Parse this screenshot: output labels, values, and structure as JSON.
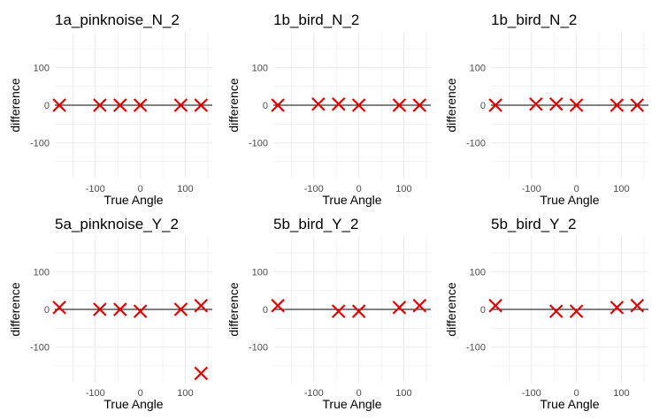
{
  "chart_data": [
    {
      "type": "scatter",
      "title": "1a_pinknoise_N_2",
      "xlabel": "True Angle",
      "ylabel": "difference",
      "x_ticks": [
        -100,
        0,
        100
      ],
      "y_ticks": [
        100,
        0,
        -100
      ],
      "xlim": [
        -190,
        160
      ],
      "ylim": [
        -195,
        195
      ],
      "reference_line": 0,
      "grid": true,
      "points": [
        {
          "x": -180,
          "y": 0
        },
        {
          "x": -90,
          "y": 0
        },
        {
          "x": -45,
          "y": 0
        },
        {
          "x": 0,
          "y": 0
        },
        {
          "x": 90,
          "y": 0
        },
        {
          "x": 135,
          "y": 0
        }
      ],
      "marker_color": "#e00000"
    },
    {
      "type": "scatter",
      "title": "1b_bird_N_2",
      "xlabel": "True Angle",
      "ylabel": "difference",
      "x_ticks": [
        -100,
        0,
        100
      ],
      "y_ticks": [
        100,
        0,
        -100
      ],
      "xlim": [
        -190,
        160
      ],
      "ylim": [
        -195,
        195
      ],
      "reference_line": 0,
      "grid": true,
      "points": [
        {
          "x": -180,
          "y": 0
        },
        {
          "x": -90,
          "y": 3
        },
        {
          "x": -45,
          "y": 3
        },
        {
          "x": 0,
          "y": 0
        },
        {
          "x": 90,
          "y": 0
        },
        {
          "x": 135,
          "y": 0
        }
      ],
      "marker_color": "#e00000"
    },
    {
      "type": "scatter",
      "title": "1b_bird_N_2",
      "xlabel": "True Angle",
      "ylabel": "difference",
      "x_ticks": [
        -100,
        0,
        100
      ],
      "y_ticks": [
        100,
        0,
        -100
      ],
      "xlim": [
        -190,
        160
      ],
      "ylim": [
        -195,
        195
      ],
      "reference_line": 0,
      "grid": true,
      "points": [
        {
          "x": -180,
          "y": 0
        },
        {
          "x": -90,
          "y": 3
        },
        {
          "x": -45,
          "y": 3
        },
        {
          "x": 0,
          "y": 0
        },
        {
          "x": 90,
          "y": 0
        },
        {
          "x": 135,
          "y": 0
        }
      ],
      "marker_color": "#e00000"
    },
    {
      "type": "scatter",
      "title": "5a_pinknoise_Y_2",
      "xlabel": "True Angle",
      "ylabel": "difference",
      "x_ticks": [
        -100,
        0,
        100
      ],
      "y_ticks": [
        100,
        0,
        -100
      ],
      "xlim": [
        -190,
        160
      ],
      "ylim": [
        -195,
        195
      ],
      "reference_line": 0,
      "grid": true,
      "points": [
        {
          "x": -180,
          "y": 5
        },
        {
          "x": -90,
          "y": 0
        },
        {
          "x": -45,
          "y": 0
        },
        {
          "x": 0,
          "y": -5
        },
        {
          "x": 90,
          "y": 0
        },
        {
          "x": 135,
          "y": 10
        },
        {
          "x": 135,
          "y": -170
        }
      ],
      "marker_color": "#e00000"
    },
    {
      "type": "scatter",
      "title": "5b_bird_Y_2",
      "xlabel": "True Angle",
      "ylabel": "difference",
      "x_ticks": [
        -100,
        0,
        100
      ],
      "y_ticks": [
        100,
        0,
        -100
      ],
      "xlim": [
        -190,
        160
      ],
      "ylim": [
        -195,
        195
      ],
      "reference_line": 0,
      "grid": true,
      "points": [
        {
          "x": -180,
          "y": 10
        },
        {
          "x": -45,
          "y": -5
        },
        {
          "x": 0,
          "y": -5
        },
        {
          "x": 90,
          "y": 5
        },
        {
          "x": 135,
          "y": 10
        }
      ],
      "marker_color": "#e00000"
    },
    {
      "type": "scatter",
      "title": "5b_bird_Y_2",
      "xlabel": "True Angle",
      "ylabel": "difference",
      "x_ticks": [
        -100,
        0,
        100
      ],
      "y_ticks": [
        100,
        0,
        -100
      ],
      "xlim": [
        -190,
        160
      ],
      "ylim": [
        -195,
        195
      ],
      "reference_line": 0,
      "grid": true,
      "points": [
        {
          "x": -180,
          "y": 10
        },
        {
          "x": -45,
          "y": -5
        },
        {
          "x": 0,
          "y": -5
        },
        {
          "x": 90,
          "y": 5
        },
        {
          "x": 135,
          "y": 10
        }
      ],
      "marker_color": "#e00000"
    }
  ]
}
